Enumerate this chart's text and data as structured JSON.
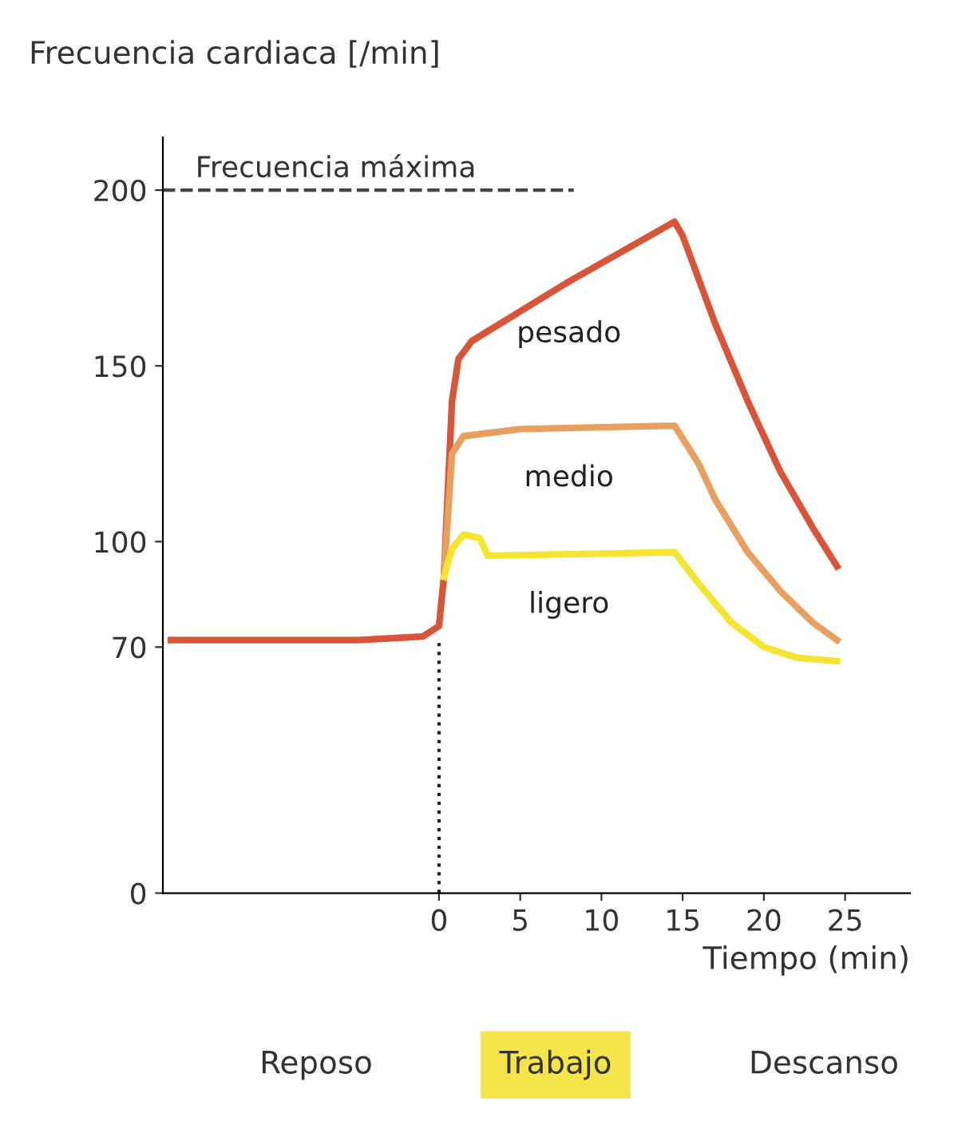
{
  "chart_data": {
    "type": "line",
    "ylabel": "Frecuencia cardiaca [/min]",
    "xlabel": "Tiempo (min)",
    "xlim": [
      -17,
      29
    ],
    "ylim": [
      0,
      215
    ],
    "xticks": [
      0,
      5,
      10,
      15,
      20,
      25
    ],
    "yticks": [
      0,
      70,
      100,
      150,
      200
    ],
    "grid": false,
    "marker": "none",
    "line_style": "solid",
    "series": [
      {
        "name": "pesado",
        "color": "#d9553a",
        "x": [
          -16.5,
          -5,
          -1,
          0,
          0.3,
          0.8,
          1.2,
          2,
          8,
          14.5,
          15,
          17,
          19,
          21,
          23,
          24.5
        ],
        "values": [
          72,
          72,
          73,
          76,
          90,
          140,
          152,
          157,
          174,
          191,
          187,
          162,
          140,
          120,
          104,
          93
        ]
      },
      {
        "name": "medio",
        "color": "#e8a060",
        "x": [
          0.3,
          0.8,
          1.5,
          5,
          14.5,
          16,
          17,
          19,
          21,
          23,
          24.5
        ],
        "values": [
          90,
          125,
          130,
          132,
          133,
          122,
          112,
          97,
          86,
          77,
          72
        ]
      },
      {
        "name": "ligero",
        "color": "#f5e430",
        "x": [
          0.3,
          0.8,
          1.5,
          2.5,
          3,
          14.5,
          16,
          18,
          20,
          22,
          24.5
        ],
        "values": [
          90,
          98,
          102,
          101,
          96,
          97,
          88,
          77,
          70,
          67,
          66
        ]
      }
    ],
    "ref_lines": [
      {
        "axis": "y",
        "value": 200,
        "label": "Frecuencia máxima",
        "line_style": "dashed",
        "color": "#444444"
      },
      {
        "axis": "x",
        "value": 0,
        "line_style": "dotted",
        "color": "#222222"
      }
    ],
    "annotations": [
      "Reposo",
      "Trabajo",
      "Descanso"
    ]
  }
}
